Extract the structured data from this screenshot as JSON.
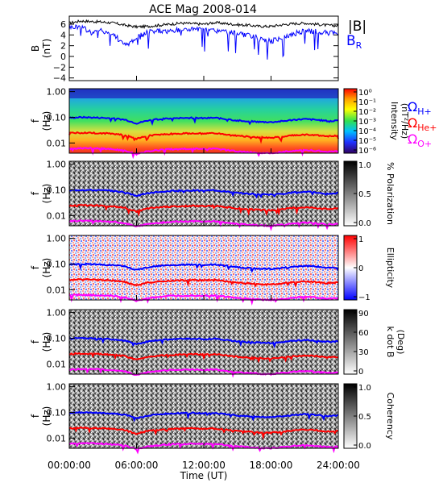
{
  "title": "ACE Mag 2008-014",
  "x_axis": {
    "label": "Time (UT)",
    "ticks": [
      "00:00:00",
      "06:00:00",
      "12:00:00",
      "18:00:00",
      "24:00:00"
    ],
    "range_hours": [
      0,
      24
    ]
  },
  "legend": {
    "b_total": "|B|",
    "b_r_main": "B",
    "b_r_sub": "R",
    "gyro_h_main": "Ω",
    "gyro_h_sub": "H+",
    "gyro_he_main": "Ω",
    "gyro_he_sub": "He+",
    "gyro_o_main": "Ω",
    "gyro_o_sub": "O+"
  },
  "colors": {
    "b_total": "#000000",
    "b_r": "#0000ff",
    "gyro_h": "#0000ff",
    "gyro_he": "#ff0000",
    "gyro_o": "#ff00ff"
  },
  "panels": {
    "mag": {
      "ylabel_main": "B",
      "ylabel_unit": "(nT)",
      "ticks": [
        "6",
        "4",
        "2",
        "0",
        "−2",
        "−4"
      ]
    },
    "freq_ylabel_main": "f",
    "freq_ylabel_unit": "(Hz)",
    "freq_ticks": [
      "1.00",
      "0.10",
      "0.01"
    ],
    "intensity": {
      "cbar_label": "Intensity",
      "cbar_unit": "(nT²/Hz)",
      "cbar_ticks": [
        "10⁰",
        "10⁻¹",
        "10⁻²",
        "10⁻³",
        "10⁻⁴",
        "10⁻⁵",
        "10⁻⁶"
      ]
    },
    "polarization": {
      "cbar_label": "% Polarization",
      "cbar_ticks": [
        "1.0",
        "0.5",
        "0.0"
      ]
    },
    "ellipticity": {
      "cbar_label": "Ellipticity",
      "cbar_ticks": [
        "1",
        "0",
        "−1"
      ]
    },
    "kdotb": {
      "cbar_label": "k dot B",
      "cbar_unit": "(Deg)",
      "cbar_ticks": [
        "90",
        "60",
        "30",
        "0"
      ]
    },
    "coherency": {
      "cbar_label": "Coherency",
      "cbar_ticks": [
        "1.0",
        "0.5",
        "0.0"
      ]
    }
  },
  "chart_data": {
    "type": "heatmap",
    "title": "ACE Mag 2008-014",
    "xlabel": "Time (UT)",
    "x_hours": [
      0,
      1,
      2,
      3,
      4,
      5,
      6,
      7,
      8,
      9,
      10,
      11,
      12,
      13,
      14,
      15,
      16,
      17,
      18,
      19,
      20,
      21,
      22,
      23,
      24
    ],
    "magnetic_field": {
      "ylabel": "B (nT)",
      "ylim": [
        -4.5,
        7.5
      ],
      "series": [
        {
          "name": "|B|",
          "values": [
            6.2,
            6.6,
            6.5,
            6.4,
            6.2,
            5.8,
            5.5,
            5.6,
            5.8,
            6.0,
            6.2,
            6.1,
            6.0,
            6.3,
            6.1,
            5.9,
            5.8,
            5.6,
            5.6,
            5.9,
            6.1,
            6.2,
            6.0,
            5.8,
            5.7
          ]
        },
        {
          "name": "B_R",
          "values": [
            5.4,
            5.6,
            4.4,
            4.8,
            4.0,
            2.0,
            3.5,
            4.6,
            4.8,
            4.6,
            5.0,
            5.1,
            4.9,
            4.8,
            4.6,
            4.2,
            3.8,
            3.4,
            2.8,
            3.6,
            4.2,
            4.8,
            4.6,
            4.4,
            4.2
          ]
        }
      ]
    },
    "frequency_axis": {
      "ylabel": "f (Hz)",
      "scale": "log",
      "ylim": [
        0.004,
        1.3
      ]
    },
    "gyrofrequency_lines": [
      {
        "name": "Ω_H+",
        "values": [
          0.095,
          0.1,
          0.098,
          0.095,
          0.09,
          0.08,
          0.058,
          0.075,
          0.085,
          0.09,
          0.093,
          0.095,
          0.092,
          0.095,
          0.085,
          0.075,
          0.07,
          0.066,
          0.065,
          0.07,
          0.08,
          0.085,
          0.08,
          0.072,
          0.075
        ]
      },
      {
        "name": "Ω_He+",
        "values": [
          0.024,
          0.025,
          0.0245,
          0.024,
          0.0225,
          0.02,
          0.0145,
          0.019,
          0.021,
          0.0225,
          0.023,
          0.024,
          0.023,
          0.024,
          0.021,
          0.019,
          0.0175,
          0.0165,
          0.016,
          0.0175,
          0.02,
          0.021,
          0.02,
          0.018,
          0.019
        ]
      },
      {
        "name": "Ω_O+",
        "values": [
          0.006,
          0.0063,
          0.0062,
          0.006,
          0.0057,
          0.005,
          0.0037,
          0.0047,
          0.0053,
          0.0057,
          0.0058,
          0.006,
          0.0058,
          0.006,
          0.0053,
          0.0047,
          0.0044,
          0.0041,
          0.004,
          0.0044,
          0.005,
          0.0053,
          0.005,
          0.0045,
          0.0047
        ]
      }
    ],
    "spectrogram_panels": [
      {
        "name": "Intensity",
        "unit": "nT²/Hz",
        "color_scale": "log",
        "range": [
          1e-06,
          1
        ]
      },
      {
        "name": "% Polarization",
        "range": [
          0,
          1
        ]
      },
      {
        "name": "Ellipticity",
        "range": [
          -1,
          1
        ]
      },
      {
        "name": "k dot B",
        "unit": "Deg",
        "range": [
          0,
          90
        ]
      },
      {
        "name": "Coherency",
        "range": [
          0,
          1
        ]
      }
    ]
  }
}
